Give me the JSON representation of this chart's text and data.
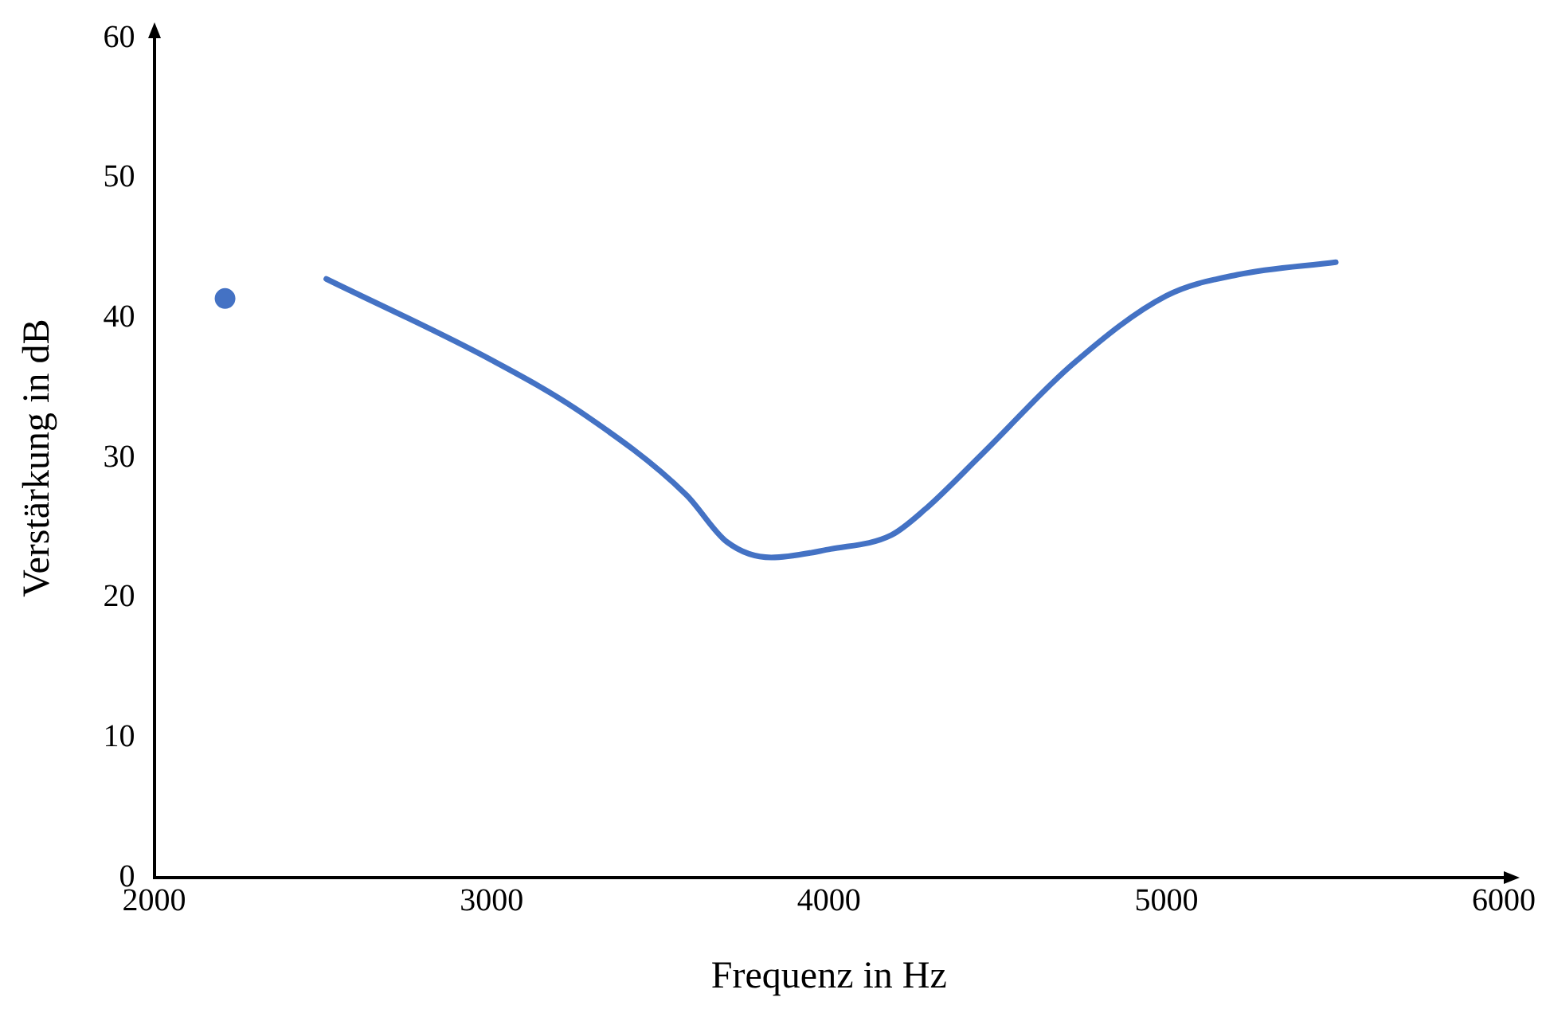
{
  "chart_data": {
    "type": "line",
    "xlabel": "Frequenz in Hz",
    "ylabel": "Verstärkung in dB",
    "xlim": [
      2000,
      6000
    ],
    "xticks": [
      2000,
      3000,
      4000,
      5000,
      6000
    ],
    "ylim": [
      0,
      60
    ],
    "yticks": [
      0,
      10,
      20,
      30,
      40,
      50,
      60
    ],
    "grid": false,
    "legend": false,
    "series": [
      {
        "type": "scatter",
        "color": "#4472c4",
        "marker": "circle",
        "x": [
          2210
        ],
        "values": [
          41.4
        ]
      },
      {
        "type": "line",
        "color": "#4472c4",
        "marker": "none",
        "line_style": "solid",
        "x": [
          2510,
          3000,
          3263,
          3576,
          3698,
          3829,
          4005,
          4185,
          4283,
          4454,
          4722,
          5000,
          5210,
          5502
        ],
        "values": [
          42.8,
          37.0,
          33.3,
          27.4,
          24.0,
          22.9,
          23.5,
          24.5,
          26.3,
          30.3,
          36.7,
          41.6,
          43.1,
          44.0
        ]
      }
    ]
  }
}
